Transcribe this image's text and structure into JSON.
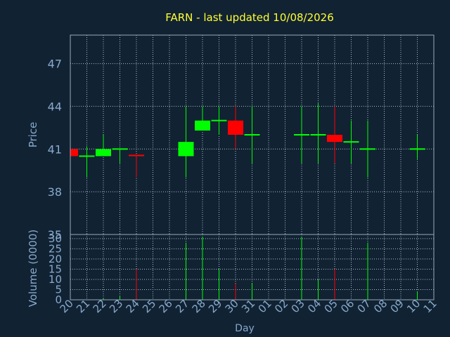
{
  "colors": {
    "background": "#112233",
    "title": "#ffff33",
    "axis_text": "#88aacc",
    "axis_line": "#99aabb",
    "grid": "#aabbcc",
    "up": "#00ff00",
    "down": "#ff0000"
  },
  "chart_data": [
    {
      "type": "candlestick",
      "title": "FARN - last updated 10/08/2026",
      "ylabel": "Price",
      "ylim": [
        35,
        49
      ],
      "y_ticks": [
        35,
        38,
        41,
        44,
        47
      ],
      "grid": true,
      "x": [
        "20",
        "21",
        "22",
        "23",
        "24",
        "25",
        "26",
        "27",
        "28",
        "29",
        "30",
        "31",
        "01",
        "02",
        "03",
        "04",
        "05",
        "06",
        "07",
        "08",
        "09",
        "10",
        "11"
      ],
      "ohlc": [
        {
          "day": "20",
          "open": 41.0,
          "high": 41.0,
          "low": 40.5,
          "close": 40.5
        },
        {
          "day": "21",
          "open": 40.5,
          "high": 41.2,
          "low": 39.0,
          "close": 40.5
        },
        {
          "day": "22",
          "open": 40.5,
          "high": 42.0,
          "low": 40.5,
          "close": 41.0
        },
        {
          "day": "23",
          "open": 41.0,
          "high": 41.0,
          "low": 40.0,
          "close": 41.0
        },
        {
          "day": "24",
          "open": 40.6,
          "high": 40.6,
          "low": 39.0,
          "close": 40.5
        },
        {
          "day": "27",
          "open": 40.5,
          "high": 44.0,
          "low": 39.0,
          "close": 41.5
        },
        {
          "day": "28",
          "open": 42.3,
          "high": 44.0,
          "low": 42.3,
          "close": 43.0
        },
        {
          "day": "29",
          "open": 43.0,
          "high": 44.0,
          "low": 42.0,
          "close": 43.0
        },
        {
          "day": "30",
          "open": 43.0,
          "high": 44.0,
          "low": 41.0,
          "close": 42.0
        },
        {
          "day": "31",
          "open": 42.0,
          "high": 44.0,
          "low": 40.0,
          "close": 42.0
        },
        {
          "day": "03",
          "open": 42.0,
          "high": 44.0,
          "low": 40.0,
          "close": 42.0
        },
        {
          "day": "04",
          "open": 42.0,
          "high": 44.2,
          "low": 40.0,
          "close": 42.0
        },
        {
          "day": "05",
          "open": 42.0,
          "high": 44.0,
          "low": 40.0,
          "close": 41.5
        },
        {
          "day": "06",
          "open": 41.5,
          "high": 43.0,
          "low": 40.0,
          "close": 41.5
        },
        {
          "day": "07",
          "open": 41.0,
          "high": 43.0,
          "low": 39.0,
          "close": 41.0
        },
        {
          "day": "10",
          "open": 41.0,
          "high": 42.0,
          "low": 40.3,
          "close": 41.0
        }
      ]
    },
    {
      "type": "bar",
      "ylabel": "Volume (0000)",
      "xlabel": "Day",
      "ylim": [
        0,
        32
      ],
      "y_ticks": [
        0,
        5,
        10,
        15,
        20,
        25,
        30
      ],
      "grid": true,
      "categories": [
        "20",
        "21",
        "22",
        "23",
        "24",
        "25",
        "26",
        "27",
        "28",
        "29",
        "30",
        "31",
        "01",
        "02",
        "03",
        "04",
        "05",
        "06",
        "07",
        "08",
        "09",
        "10",
        "11"
      ],
      "values": [
        0,
        0,
        1,
        2,
        15,
        0,
        0,
        28,
        31,
        15,
        8,
        8,
        0,
        0,
        31,
        10,
        15,
        0,
        28,
        0,
        0,
        4,
        0
      ],
      "bar_direction": [
        "up",
        "up",
        "up",
        "up",
        "down",
        "",
        "",
        "up",
        "up",
        "up",
        "down",
        "up",
        "",
        "",
        "up",
        "up",
        "down",
        "up",
        "up",
        "",
        "",
        "up",
        ""
      ]
    }
  ]
}
